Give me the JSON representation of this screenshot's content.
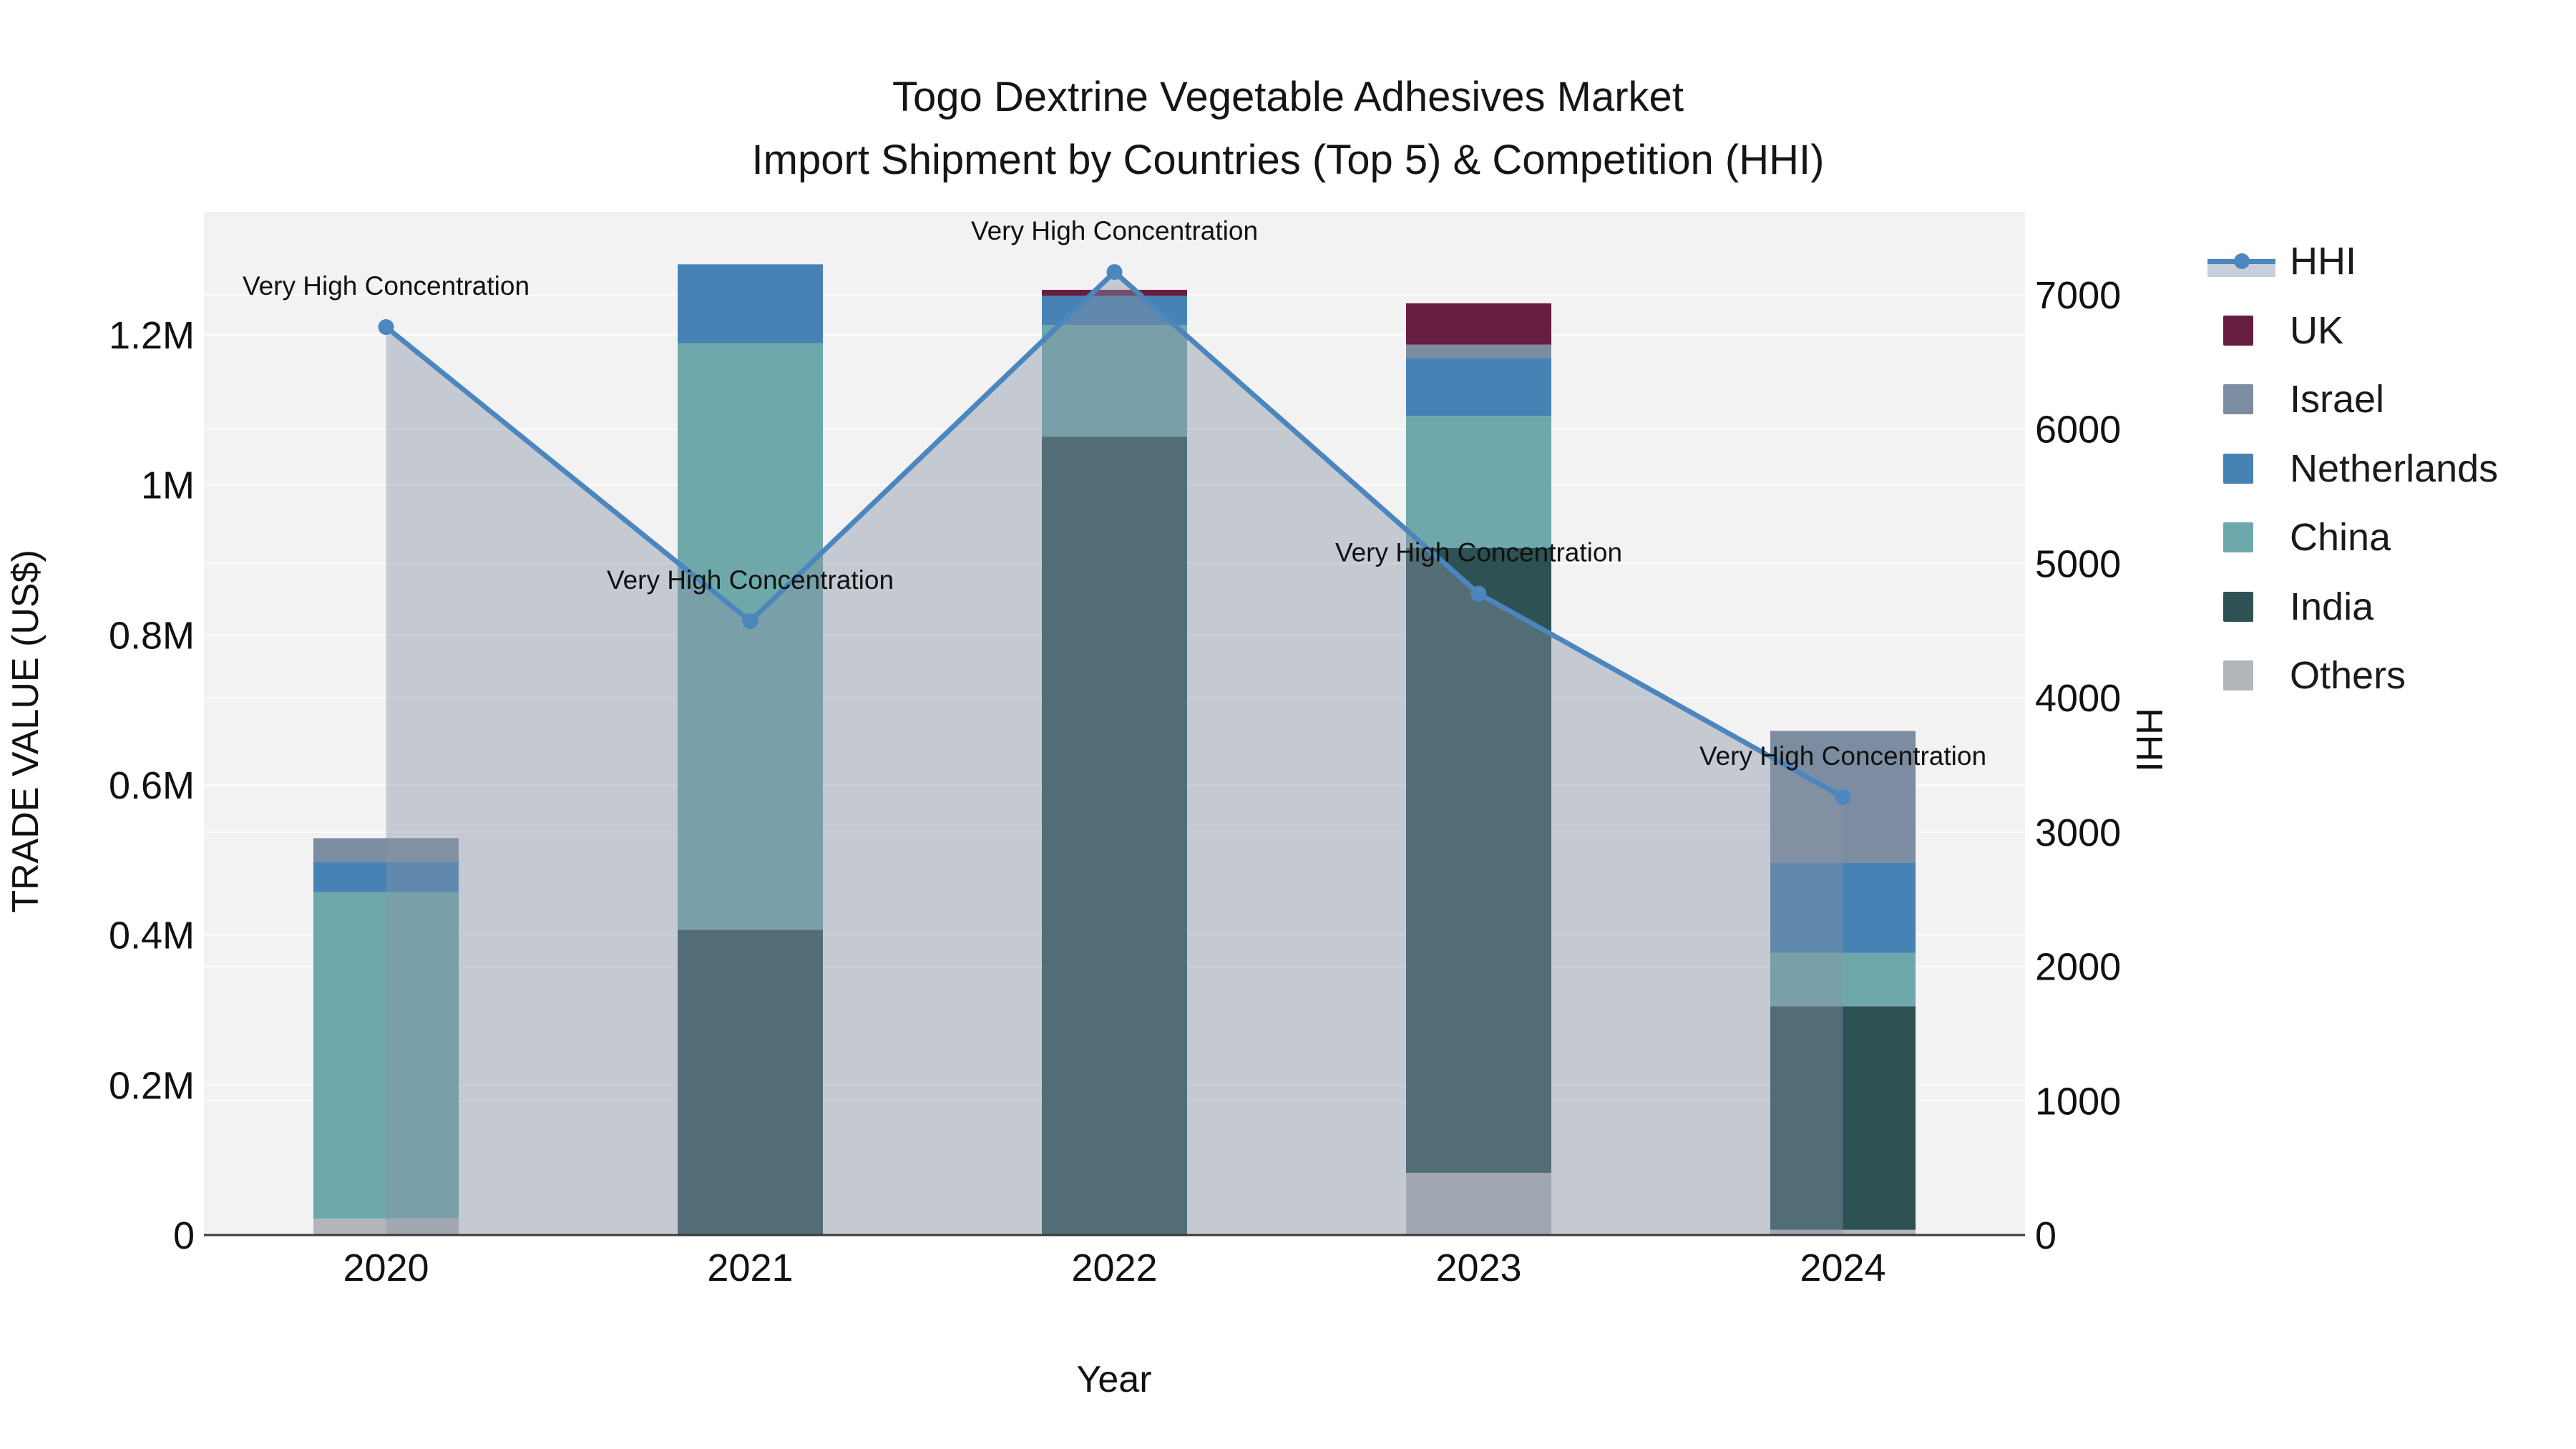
{
  "title": {
    "line1": "Togo Dextrine Vegetable Adhesives Market",
    "line2": "Import Shipment by Countries (Top 5) & Competition (HHI)"
  },
  "axes": {
    "x_title": "Year",
    "left_title": "TRADE VALUE (US$)",
    "right_title": "HHI",
    "left_tick_labels": [
      "0",
      "0.2M",
      "0.4M",
      "0.6M",
      "0.8M",
      "1M",
      "1.2M"
    ],
    "right_tick_labels": [
      "0",
      "1000",
      "2000",
      "3000",
      "4000",
      "5000",
      "6000",
      "7000"
    ],
    "x_tick_labels": [
      "2020",
      "2021",
      "2022",
      "2023",
      "2024"
    ]
  },
  "legend": {
    "items": [
      {
        "label": "HHI",
        "type": "line",
        "color": "#4c86be",
        "fill": "#c7ceda"
      },
      {
        "label": "UK",
        "type": "swatch",
        "color": "#671d40"
      },
      {
        "label": "Israel",
        "type": "swatch",
        "color": "#7d8da1"
      },
      {
        "label": "Netherlands",
        "type": "swatch",
        "color": "#4682b4"
      },
      {
        "label": "China",
        "type": "swatch",
        "color": "#6ea8aa"
      },
      {
        "label": "India",
        "type": "swatch",
        "color": "#2e5254"
      },
      {
        "label": "Others",
        "type": "swatch",
        "color": "#b3b6b9"
      }
    ]
  },
  "chart_data": {
    "type": "stacked-bar+line",
    "title": "Togo Dextrine Vegetable Adhesives Market — Import Shipment by Countries (Top 5) & Competition (HHI)",
    "categories": [
      "2020",
      "2021",
      "2022",
      "2023",
      "2024"
    ],
    "xlabel": "Year",
    "ylabel_left": "TRADE VALUE (US$)",
    "ylabel_right": "HHI",
    "bar_unit": "US$",
    "bar_series_bottom_to_top": [
      {
        "name": "Others",
        "color": "#b3b6b9",
        "values": [
          22000,
          0,
          0,
          83000,
          7000
        ]
      },
      {
        "name": "India",
        "color": "#2e5254",
        "values": [
          0,
          407000,
          1064000,
          833000,
          298000
        ]
      },
      {
        "name": "China",
        "color": "#6ea8aa",
        "values": [
          435000,
          782000,
          149000,
          176000,
          71000
        ]
      },
      {
        "name": "Netherlands",
        "color": "#4682b4",
        "values": [
          40000,
          105000,
          39000,
          77000,
          120000
        ]
      },
      {
        "name": "Israel",
        "color": "#7d8da1",
        "values": [
          32000,
          0,
          0,
          18000,
          176000
        ]
      },
      {
        "name": "UK",
        "color": "#671d40",
        "values": [
          0,
          0,
          8000,
          55000,
          0
        ]
      }
    ],
    "bar_totals": [
      529000,
      1294000,
      1260000,
      1242000,
      672000
    ],
    "line_series": {
      "name": "HHI",
      "axis": "right",
      "color": "#4c86be",
      "area_fill": "rgba(136,148,168,0.42)",
      "values": [
        6760,
        4570,
        7170,
        4775,
        3260
      ]
    },
    "annotations": [
      "Very High Concentration",
      "Very High Concentration",
      "Very High Concentration",
      "Very High Concentration",
      "Very High Concentration"
    ],
    "ylim_left": [
      0,
      1364000
    ],
    "ylim_right": [
      0,
      7618
    ],
    "ytick_step_left": 200000,
    "ytick_step_right": 1000,
    "grid": true,
    "legend_position": "right",
    "plot_bg": "#f2f2f2",
    "grid_color": "#ffffff",
    "axis_line_color": "#3a3a3a"
  }
}
